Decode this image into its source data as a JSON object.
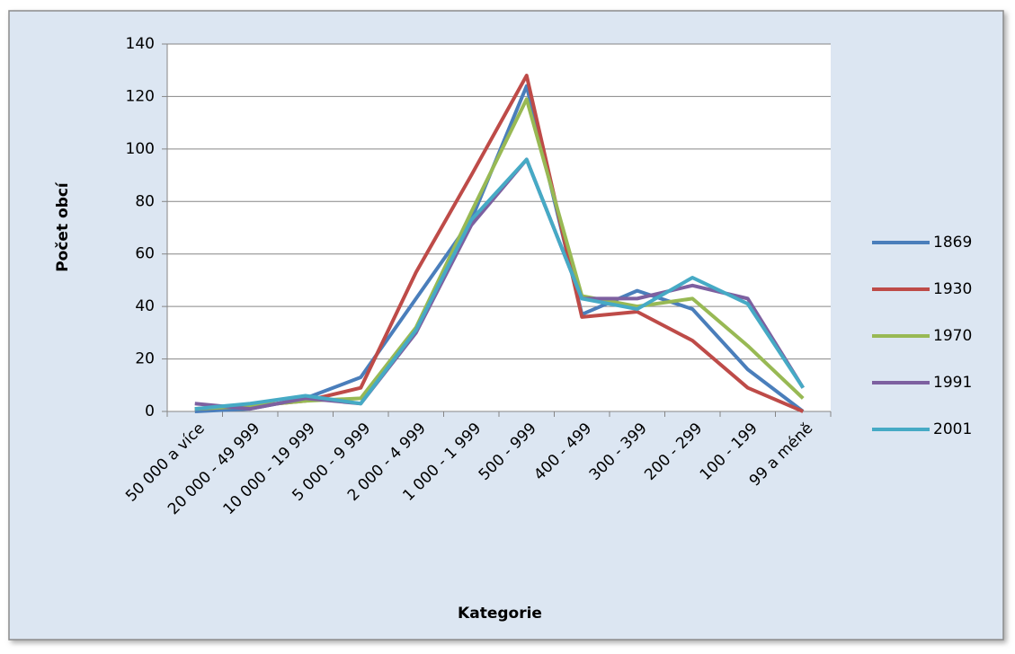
{
  "chart_data": {
    "type": "line",
    "x_label": "Kategorie",
    "y_label": "Počet obcí",
    "categories": [
      "50 000 a více",
      "20 000 - 49 999",
      "10 000 - 19 999",
      "5 000 - 9 999",
      "2 000 - 4 999",
      "1 000 - 1 999",
      "500 - 999",
      "400 - 499",
      "300 - 399",
      "200 - 299",
      "100 - 199",
      "99 a méně"
    ],
    "series": [
      {
        "name": "1869",
        "color": "#4a7ebb",
        "values": [
          0,
          1,
          5,
          13,
          43,
          73,
          124,
          37,
          46,
          39,
          16,
          0
        ]
      },
      {
        "name": "1930",
        "color": "#be4b48",
        "values": [
          1,
          2,
          4,
          9,
          53,
          90,
          128,
          36,
          38,
          27,
          9,
          0
        ]
      },
      {
        "name": "1970",
        "color": "#98b954",
        "values": [
          1,
          2,
          4,
          5,
          32,
          76,
          119,
          44,
          40,
          43,
          25,
          5
        ]
      },
      {
        "name": "1991",
        "color": "#7d60a0",
        "values": [
          3,
          1,
          5,
          3,
          30,
          71,
          96,
          43,
          43,
          48,
          43,
          9
        ]
      },
      {
        "name": "2001",
        "color": "#46aac5",
        "values": [
          1,
          3,
          6,
          3,
          31,
          73,
          96,
          43,
          39,
          51,
          41,
          9
        ]
      }
    ],
    "ylim": [
      0,
      140
    ],
    "yticks": [
      0,
      20,
      40,
      60,
      80,
      100,
      120,
      140
    ],
    "grid": true,
    "legend": "right"
  }
}
